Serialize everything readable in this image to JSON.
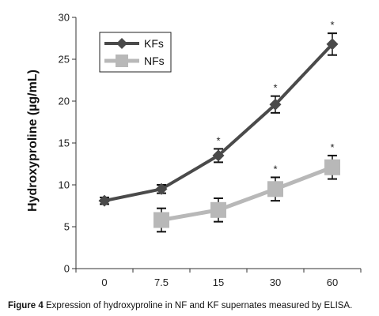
{
  "chart_data": {
    "type": "line",
    "categories": [
      "0",
      "7.5",
      "15",
      "30",
      "60"
    ],
    "series": [
      {
        "name": "KFs",
        "values": [
          8.1,
          9.5,
          13.5,
          19.6,
          26.8
        ],
        "errors": [
          0.4,
          0.5,
          0.8,
          1.0,
          1.3
        ],
        "marker": "diamond",
        "color": "#4a4a4a"
      },
      {
        "name": "NFs",
        "values": [
          null,
          5.8,
          7.0,
          9.5,
          12.1
        ],
        "errors": [
          null,
          1.4,
          1.4,
          1.4,
          1.4
        ],
        "marker": "square",
        "color": "#b8b8b8"
      }
    ],
    "significance": [
      {
        "series": "KFs",
        "category": "15",
        "mark": "*"
      },
      {
        "series": "KFs",
        "category": "30",
        "mark": "*"
      },
      {
        "series": "KFs",
        "category": "60",
        "mark": "*"
      },
      {
        "series": "NFs",
        "category": "30",
        "mark": "*"
      },
      {
        "series": "NFs",
        "category": "60",
        "mark": "*"
      }
    ],
    "ylabel": "Hydroxyproline (µg/mL)",
    "xlabel": "",
    "ylim": [
      0,
      30
    ],
    "yticks": [
      0,
      5,
      10,
      15,
      20,
      25,
      30
    ],
    "legend_position": "top-left",
    "grid": false
  },
  "caption": {
    "label": "Figure 4",
    "text": "Expression of hydroxyproline in NF and KF supernates measured by ELISA."
  }
}
